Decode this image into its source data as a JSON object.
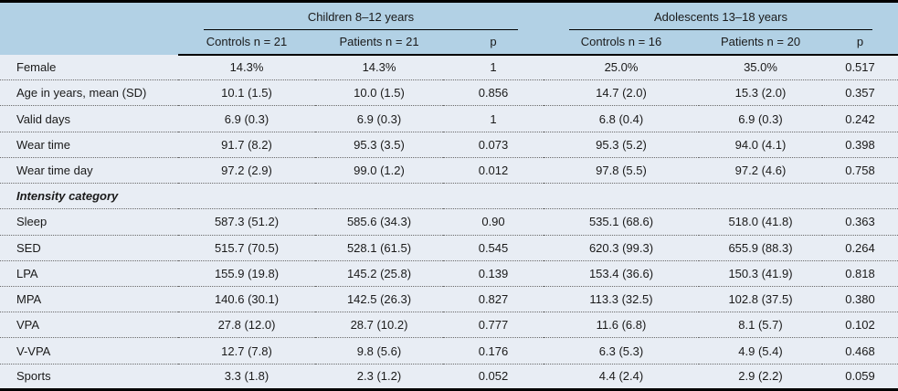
{
  "table": {
    "colors": {
      "header_bg": "#b2d1e5",
      "row_bg": "#e8edf4",
      "border": "#000000",
      "text": "#1a1a1a"
    },
    "groups": [
      {
        "label": "Children 8–12 years"
      },
      {
        "label": "Adolescents 13–18 years"
      }
    ],
    "columns": [
      "Controls n = 21",
      "Patients n = 21",
      "p",
      "Controls n = 16",
      "Patients n = 20",
      "p"
    ],
    "rows": [
      {
        "label": "Female",
        "section": false,
        "cells": [
          "14.3%",
          "14.3%",
          "1",
          "25.0%",
          "35.0%",
          "0.517"
        ]
      },
      {
        "label": "Age in years, mean (SD)",
        "section": false,
        "cells": [
          "10.1 (1.5)",
          "10.0 (1.5)",
          "0.856",
          "14.7 (2.0)",
          "15.3 (2.0)",
          "0.357"
        ]
      },
      {
        "label": "Valid days",
        "section": false,
        "cells": [
          "6.9 (0.3)",
          "6.9 (0.3)",
          "1",
          "6.8 (0.4)",
          "6.9 (0.3)",
          "0.242"
        ]
      },
      {
        "label": "Wear time",
        "section": false,
        "cells": [
          "91.7 (8.2)",
          "95.3 (3.5)",
          "0.073",
          "95.3 (5.2)",
          "94.0 (4.1)",
          "0.398"
        ]
      },
      {
        "label": "Wear time day",
        "section": false,
        "cells": [
          "97.2 (2.9)",
          "99.0 (1.2)",
          "0.012",
          "97.8 (5.5)",
          "97.2 (4.6)",
          "0.758"
        ]
      },
      {
        "label": "Intensity category",
        "section": true,
        "cells": [
          "",
          "",
          "",
          "",
          "",
          ""
        ]
      },
      {
        "label": "Sleep",
        "section": false,
        "cells": [
          "587.3 (51.2)",
          "585.6 (34.3)",
          "0.90",
          "535.1 (68.6)",
          "518.0 (41.8)",
          "0.363"
        ]
      },
      {
        "label": "SED",
        "section": false,
        "cells": [
          "515.7 (70.5)",
          "528.1 (61.5)",
          "0.545",
          "620.3 (99.3)",
          "655.9 (88.3)",
          "0.264"
        ]
      },
      {
        "label": "LPA",
        "section": false,
        "cells": [
          "155.9 (19.8)",
          "145.2 (25.8)",
          "0.139",
          "153.4 (36.6)",
          "150.3 (41.9)",
          "0.818"
        ]
      },
      {
        "label": "MPA",
        "section": false,
        "cells": [
          "140.6 (30.1)",
          "142.5 (26.3)",
          "0.827",
          "113.3 (32.5)",
          "102.8 (37.5)",
          "0.380"
        ]
      },
      {
        "label": "VPA",
        "section": false,
        "cells": [
          "27.8 (12.0)",
          "28.7 (10.2)",
          "0.777",
          "11.6 (6.8)",
          "8.1 (5.7)",
          "0.102"
        ]
      },
      {
        "label": "V-VPA",
        "section": false,
        "cells": [
          "12.7 (7.8)",
          "9.8 (5.6)",
          "0.176",
          "6.3 (5.3)",
          "4.9 (5.4)",
          "0.468"
        ]
      },
      {
        "label": "Sports",
        "section": false,
        "cells": [
          "3.3 (1.8)",
          "2.3 (1.2)",
          "0.052",
          "4.4 (2.4)",
          "2.9 (2.2)",
          "0.059"
        ]
      }
    ]
  }
}
